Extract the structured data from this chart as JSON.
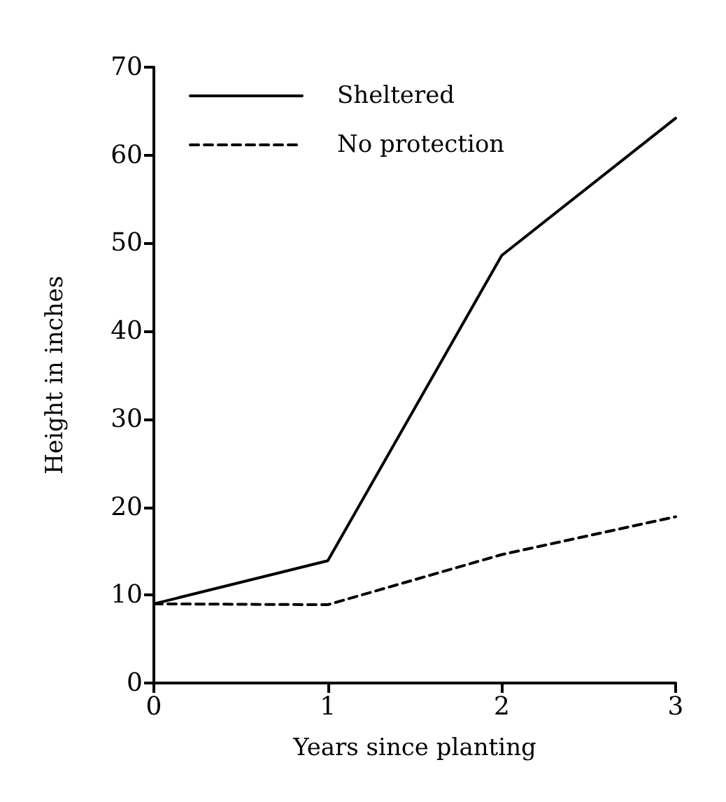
{
  "chart_data": {
    "type": "line",
    "xlabel": "Years since planting",
    "ylabel": "Height in inches",
    "x": [
      0,
      1,
      2,
      3
    ],
    "series": [
      {
        "name": "Sheltered",
        "color": "#000000",
        "line_style": "solid",
        "values": [
          9,
          13.9,
          48.6,
          64.2
        ]
      },
      {
        "name": "No protection",
        "color": "#000000",
        "line_style": "dashed",
        "values": [
          9,
          8.9,
          14.6,
          18.9
        ]
      }
    ],
    "xlim": [
      0,
      3
    ],
    "xticks": [
      0,
      1,
      2,
      3
    ],
    "ylim": [
      0,
      70
    ],
    "yticks": [
      0,
      10,
      20,
      30,
      40,
      50,
      60,
      70
    ],
    "grid": false,
    "legend": "top left",
    "marker": "none"
  }
}
